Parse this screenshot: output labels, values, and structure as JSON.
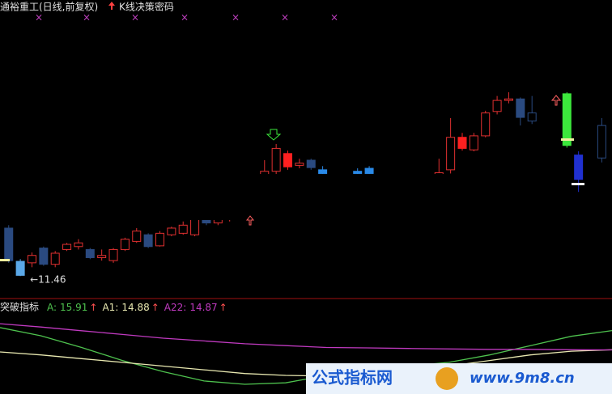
{
  "chart_data": [
    {
      "type": "candlestick",
      "title": "通裕重工(日线,前复权)",
      "subtitle": "K线决策密码",
      "x": [
        0,
        1,
        2,
        3,
        4,
        5,
        6,
        7,
        8,
        9,
        10,
        11,
        12,
        13,
        14,
        15,
        16,
        17,
        18,
        19,
        22,
        23,
        24,
        25,
        26,
        27,
        30,
        31,
        37,
        38,
        39,
        40,
        41,
        42,
        43,
        44,
        45,
        48,
        49,
        51
      ],
      "open": [
        12.11,
        11.66,
        11.64,
        11.84,
        11.62,
        11.82,
        11.86,
        11.82,
        11.71,
        11.67,
        11.82,
        11.93,
        12.02,
        11.87,
        12.02,
        12.04,
        12.02,
        12.22,
        12.18,
        12.26,
        12.7,
        12.88,
        13.12,
        12.96,
        13.03,
        12.9,
        12.88,
        12.92,
        12.83,
        12.9,
        13.34,
        13.17,
        13.36,
        13.69,
        13.84,
        13.86,
        13.67,
        13.93,
        13.1,
        13.5
      ],
      "high": [
        12.15,
        11.69,
        11.78,
        11.86,
        11.8,
        11.91,
        11.96,
        11.84,
        11.82,
        11.84,
        11.98,
        12.11,
        12.04,
        12.07,
        12.13,
        12.2,
        12.26,
        12.28,
        12.29,
        12.35,
        13.03,
        13.25,
        13.16,
        13.05,
        13.05,
        12.95,
        12.92,
        12.95,
        13.05,
        13.6,
        13.4,
        13.4,
        13.7,
        13.9,
        13.95,
        13.88,
        13.9,
        13.95,
        13.15,
        13.6
      ],
      "low": [
        11.64,
        11.46,
        11.58,
        11.6,
        11.58,
        11.8,
        11.82,
        11.69,
        11.67,
        11.64,
        11.8,
        11.91,
        11.84,
        11.86,
        12.0,
        12.02,
        12.0,
        12.15,
        12.15,
        12.2,
        12.6,
        12.8,
        12.9,
        12.92,
        12.9,
        12.8,
        12.8,
        12.8,
        12.8,
        12.85,
        13.16,
        13.15,
        13.34,
        13.65,
        13.8,
        13.5,
        13.52,
        13.2,
        12.6,
        13.0
      ],
      "close": [
        11.67,
        11.47,
        11.74,
        11.62,
        11.77,
        11.89,
        11.91,
        11.71,
        11.74,
        11.82,
        11.96,
        12.07,
        11.86,
        12.04,
        12.11,
        12.15,
        12.24,
        12.18,
        12.26,
        12.3,
        12.88,
        13.19,
        12.94,
        12.99,
        12.93,
        12.85,
        12.85,
        12.85,
        12.86,
        13.34,
        13.19,
        13.36,
        13.67,
        13.84,
        13.86,
        13.61,
        13.56,
        13.23,
        12.77,
        13.06
      ],
      "colors": [
        "#2a4a80",
        "#5aa8e8",
        "#e03030",
        "#2a4a80",
        "#e03030",
        "#e03030",
        "#e03030",
        "#2a4a80",
        "#e03030",
        "#e03030",
        "#e03030",
        "#e03030",
        "#2a4a80",
        "#e03030",
        "#e03030",
        "#e03030",
        "#e03030",
        "#2a4a80",
        "#e03030",
        "#e03030",
        "#e03030",
        "#e03030",
        "#ff2020",
        "#e03030",
        "#2a4a80",
        "#2a8ae8",
        "#2a8ae8",
        "#2a8ae8",
        "#e03030",
        "#e03030",
        "#ff2020",
        "#e03030",
        "#e03030",
        "#e03030",
        "#e03030",
        "#2a4a80",
        "#2a4a80",
        "#3ce83c",
        "#2030d0",
        "#2a4a80"
      ],
      "filled": [
        true,
        true,
        false,
        true,
        false,
        false,
        false,
        true,
        false,
        false,
        false,
        false,
        true,
        false,
        false,
        false,
        false,
        true,
        false,
        false,
        false,
        false,
        true,
        false,
        true,
        true,
        true,
        true,
        false,
        false,
        true,
        false,
        false,
        false,
        false,
        true,
        false,
        true,
        true,
        false
      ],
      "low_marker": "←",
      "xlim": [
        -0.4,
        51.6
      ],
      "ylim": [
        11.2,
        15.2
      ]
    },
    {
      "type": "line",
      "title": "突破指标",
      "trend_marker": "↑",
      "series": [
        {
          "name": "A:",
          "color": "#4ec24e",
          "values": [
            16.07,
            15.63,
            15.0,
            14.3,
            13.7,
            13.2,
            13.02,
            13.1,
            13.5,
            13.9,
            14.0,
            14.2,
            14.6,
            15.1,
            15.6,
            15.91
          ]
        },
        {
          "name": "A1:",
          "color": "#e8e8b0",
          "values": [
            14.76,
            14.6,
            14.4,
            14.2,
            14.0,
            13.8,
            13.6,
            13.5,
            13.46,
            13.6,
            13.8,
            14.0,
            14.3,
            14.6,
            14.8,
            14.88
          ]
        },
        {
          "name": "A22:",
          "color": "#c03ac0",
          "values": [
            16.28,
            16.1,
            15.9,
            15.7,
            15.5,
            15.35,
            15.2,
            15.1,
            15.0,
            14.98,
            14.95,
            14.92,
            14.9,
            14.9,
            14.88,
            14.87
          ]
        }
      ],
      "ylim": [
        12.5,
        17.5
      ]
    }
  ],
  "watermark": {
    "name": "公式指标网",
    "url": "www.9m8.cn"
  }
}
